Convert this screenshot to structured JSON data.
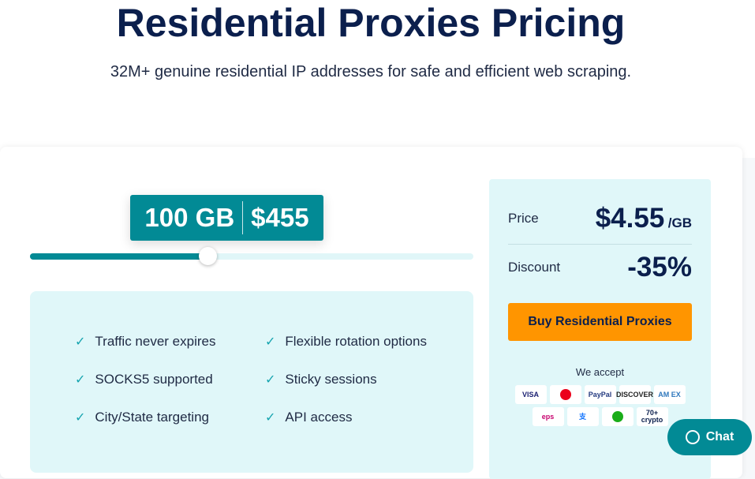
{
  "header": {
    "title": "Residential Proxies Pricing",
    "subtitle": "32M+ genuine residential IP addresses for safe and efficient web scraping."
  },
  "slider": {
    "amount": "100 GB",
    "total": "$455",
    "fill_percent": 40
  },
  "features": [
    "Traffic never expires",
    "Flexible rotation options",
    "SOCKS5 supported",
    "Sticky sessions",
    "City/State targeting",
    "API access"
  ],
  "summary": {
    "price_label": "Price",
    "price": "$4.55",
    "price_unit": "/GB",
    "discount_label": "Discount",
    "discount": "-35%",
    "buy_label": "Buy Residential Proxies",
    "accept_label": "We accept"
  },
  "payments": [
    {
      "name": "VISA",
      "color": "#1a1f71"
    },
    {
      "name": "",
      "color": "#eb001b"
    },
    {
      "name": "PayPal",
      "color": "#253b80"
    },
    {
      "name": "DISCOVER",
      "color": "#222"
    },
    {
      "name": "AM EX",
      "color": "#2e77bc"
    },
    {
      "name": "eps",
      "color": "#c8036f"
    },
    {
      "name": "支",
      "color": "#1677ff"
    },
    {
      "name": "",
      "color": "#1aad19"
    },
    {
      "name": "70+ crypto",
      "color": "#0b1f4d"
    }
  ],
  "chat": {
    "label": "Chat"
  },
  "colors": {
    "accent": "#028a95",
    "button": "#ff9500",
    "panel": "#e0f7f9"
  }
}
